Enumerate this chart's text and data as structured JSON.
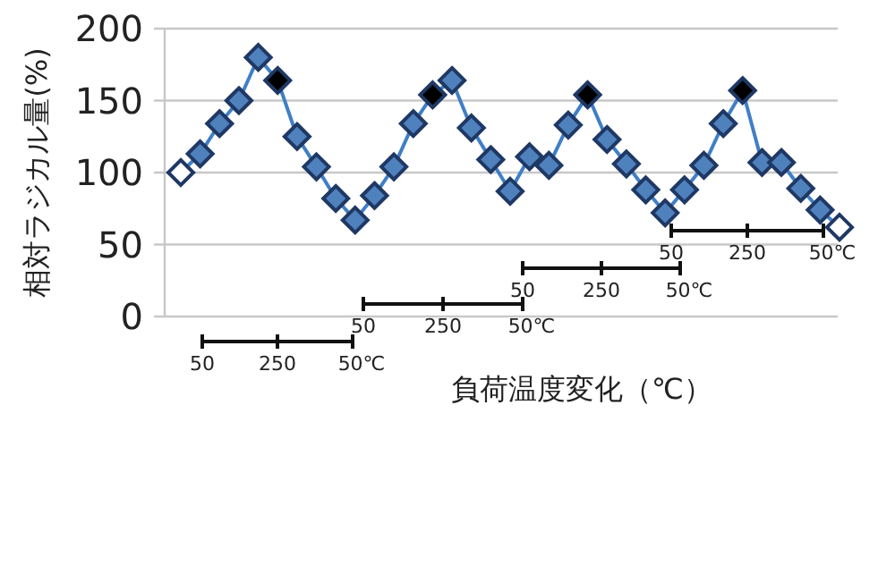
{
  "chart_data": {
    "type": "line",
    "xlabel": "負荷温度変化（℃）",
    "ylabel": "相対ラジカル量(%)",
    "categories": [
      null,
      null,
      null,
      null,
      null,
      null,
      null,
      null,
      null,
      null,
      null,
      null,
      null,
      null,
      null,
      null,
      null,
      null,
      null,
      null,
      null,
      null,
      null,
      null,
      null,
      null,
      null,
      null,
      null,
      null,
      null,
      null,
      null,
      null,
      null
    ],
    "series": [
      {
        "color": "#3f7fc6",
        "values": [
          100,
          113,
          134,
          150,
          180,
          164,
          125,
          104,
          82,
          67,
          84,
          104,
          134,
          154,
          164,
          131,
          109,
          87,
          111,
          105,
          133,
          154,
          123,
          106,
          88,
          72,
          88,
          105,
          134,
          157,
          107,
          107,
          89,
          74,
          62
        ],
        "colors": [
          "#ffffff",
          "#4f81bd",
          "#4f81bd",
          "#4f81bd",
          "#4f81bd",
          "#000000",
          "#4f81bd",
          "#4f81bd",
          "#4f81bd",
          "#4f81bd",
          "#4f81bd",
          "#4f81bd",
          "#4f81bd",
          "#000000",
          "#4f81bd",
          "#4f81bd",
          "#4f81bd",
          "#4f81bd",
          "#4f81bd",
          "#4f81bd",
          "#4f81bd",
          "#000000",
          "#4f81bd",
          "#4f81bd",
          "#4f81bd",
          "#4f81bd",
          "#4f81bd",
          "#4f81bd",
          "#4f81bd",
          "#000000",
          "#4f81bd",
          "#4f81bd",
          "#4f81bd",
          "#4f81bd",
          "#ffffff"
        ]
      }
    ],
    "ylim": [
      0,
      200
    ],
    "yticks": [
      0,
      50,
      100,
      150,
      200
    ],
    "grid": "y",
    "marker": "diamond",
    "line_style": "solid",
    "tick_labels": "y",
    "annotations": [
      "50",
      "250",
      "50℃",
      "50",
      "250",
      "50℃",
      "50",
      "250",
      "50℃",
      "50",
      "250",
      "50℃"
    ]
  }
}
